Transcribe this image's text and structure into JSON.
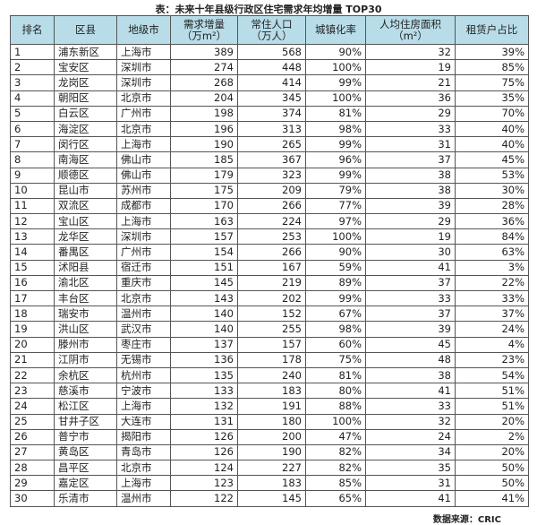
{
  "title": "表：未来十年县级行政区住宅需求年均增量 TOP30",
  "header_color": "#b8dde9",
  "columns": [
    "排名",
    "区县",
    "地级市",
    "需求增量\n（万m²）",
    "常住人口\n（万人）",
    "城镇化率",
    "人均住房面积\n（m²）",
    "租赁户占比"
  ],
  "rows": [
    [
      "1",
      "浦东新区",
      "上海市",
      "389",
      "568",
      "90%",
      "32",
      "39%"
    ],
    [
      "2",
      "宝安区",
      "深圳市",
      "274",
      "448",
      "100%",
      "19",
      "85%"
    ],
    [
      "3",
      "龙岗区",
      "深圳市",
      "268",
      "414",
      "99%",
      "21",
      "75%"
    ],
    [
      "4",
      "朝阳区",
      "北京市",
      "204",
      "345",
      "100%",
      "36",
      "35%"
    ],
    [
      "5",
      "白云区",
      "广州市",
      "198",
      "374",
      "81%",
      "29",
      "70%"
    ],
    [
      "6",
      "海淀区",
      "北京市",
      "196",
      "313",
      "98%",
      "33",
      "40%"
    ],
    [
      "7",
      "闵行区",
      "上海市",
      "190",
      "265",
      "99%",
      "31",
      "40%"
    ],
    [
      "8",
      "南海区",
      "佛山市",
      "185",
      "367",
      "96%",
      "37",
      "45%"
    ],
    [
      "9",
      "顺德区",
      "佛山市",
      "179",
      "323",
      "99%",
      "38",
      "53%"
    ],
    [
      "10",
      "昆山市",
      "苏州市",
      "175",
      "209",
      "79%",
      "38",
      "30%"
    ],
    [
      "11",
      "双流区",
      "成都市",
      "170",
      "266",
      "77%",
      "39",
      "28%"
    ],
    [
      "12",
      "宝山区",
      "上海市",
      "163",
      "224",
      "97%",
      "29",
      "36%"
    ],
    [
      "13",
      "龙华区",
      "深圳市",
      "157",
      "253",
      "100%",
      "19",
      "84%"
    ],
    [
      "14",
      "番禺区",
      "广州市",
      "154",
      "266",
      "90%",
      "30",
      "63%"
    ],
    [
      "15",
      "沭阳县",
      "宿迁市",
      "151",
      "167",
      "59%",
      "41",
      "3%"
    ],
    [
      "16",
      "渝北区",
      "重庆市",
      "145",
      "219",
      "89%",
      "37",
      "22%"
    ],
    [
      "17",
      "丰台区",
      "北京市",
      "143",
      "202",
      "99%",
      "33",
      "33%"
    ],
    [
      "18",
      "瑞安市",
      "温州市",
      "140",
      "152",
      "67%",
      "37",
      "37%"
    ],
    [
      "19",
      "洪山区",
      "武汉市",
      "140",
      "255",
      "98%",
      "39",
      "24%"
    ],
    [
      "20",
      "滕州市",
      "枣庄市",
      "137",
      "157",
      "60%",
      "45",
      "4%"
    ],
    [
      "21",
      "江阴市",
      "无锡市",
      "136",
      "178",
      "75%",
      "48",
      "23%"
    ],
    [
      "22",
      "余杭区",
      "杭州市",
      "135",
      "240",
      "81%",
      "38",
      "54%"
    ],
    [
      "23",
      "慈溪市",
      "宁波市",
      "133",
      "183",
      "80%",
      "41",
      "51%"
    ],
    [
      "24",
      "松江区",
      "上海市",
      "132",
      "191",
      "88%",
      "33",
      "51%"
    ],
    [
      "25",
      "甘井子区",
      "大连市",
      "131",
      "180",
      "100%",
      "32",
      "20%"
    ],
    [
      "26",
      "普宁市",
      "揭阳市",
      "126",
      "200",
      "47%",
      "24",
      "2%"
    ],
    [
      "27",
      "黄岛区",
      "青岛市",
      "126",
      "190",
      "82%",
      "34",
      "20%"
    ],
    [
      "28",
      "昌平区",
      "北京市",
      "124",
      "227",
      "82%",
      "35",
      "50%"
    ],
    [
      "29",
      "嘉定区",
      "上海市",
      "123",
      "183",
      "85%",
      "31",
      "50%"
    ],
    [
      "30",
      "乐清市",
      "温州市",
      "122",
      "145",
      "65%",
      "41",
      "41%"
    ]
  ],
  "source": "数据来源：CRIC"
}
